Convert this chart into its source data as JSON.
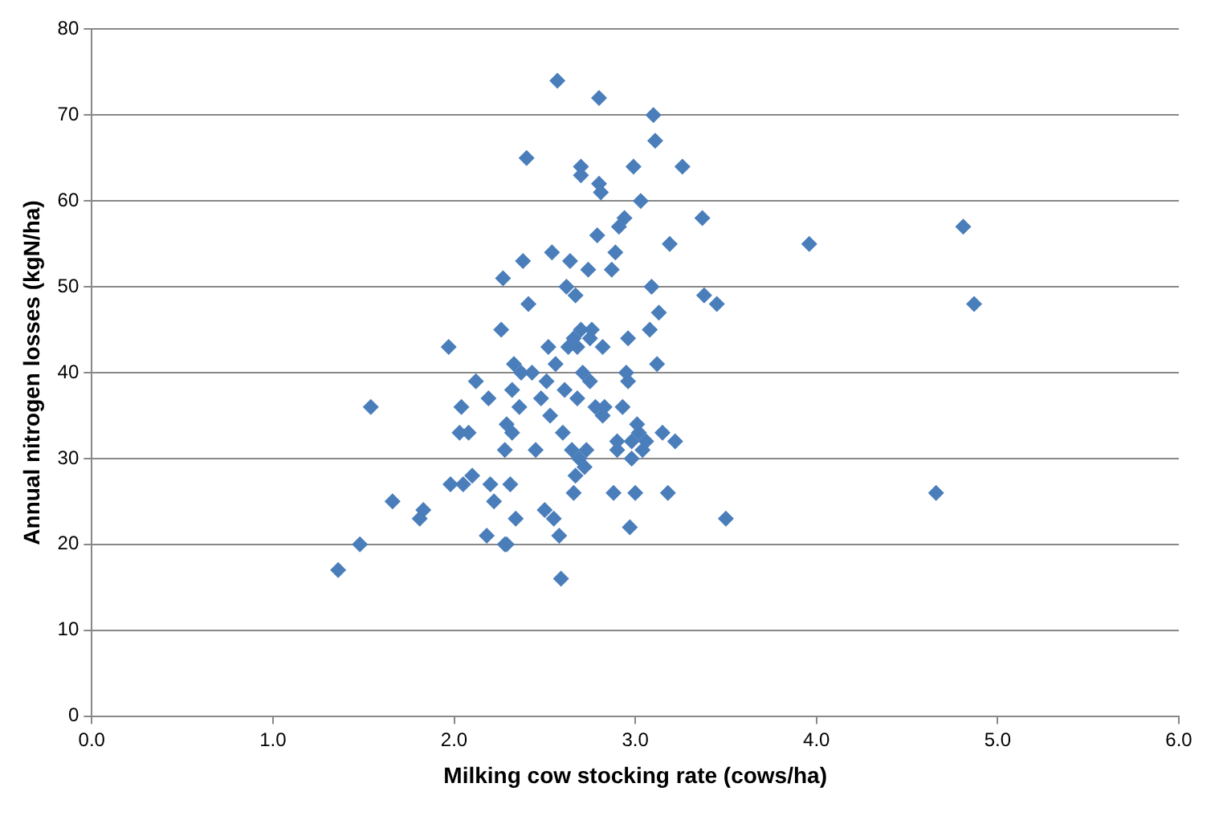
{
  "chart_data": {
    "type": "scatter",
    "xlabel": "Milking cow stocking rate (cows/ha)",
    "ylabel": "Annual nitrogen losses (kgN/ha)",
    "xlim": [
      0,
      6
    ],
    "ylim": [
      0,
      80
    ],
    "xticks": [
      {
        "value": 0,
        "label": "0.0"
      },
      {
        "value": 1,
        "label": "1.0"
      },
      {
        "value": 2,
        "label": "2.0"
      },
      {
        "value": 3,
        "label": "3.0"
      },
      {
        "value": 4,
        "label": "4.0"
      },
      {
        "value": 5,
        "label": "5.0"
      },
      {
        "value": 6,
        "label": "6.0"
      }
    ],
    "yticks": [
      0,
      10,
      20,
      30,
      40,
      50,
      60,
      70,
      80
    ],
    "grid": "y",
    "legend": false,
    "marker": "diamond",
    "series": [
      {
        "color": "#4a7ebb",
        "x": [
          1.36,
          1.48,
          1.54,
          1.66,
          1.81,
          1.83,
          1.97,
          1.98,
          2.03,
          2.04,
          2.05,
          2.08,
          2.1,
          2.12,
          2.18,
          2.19,
          2.2,
          2.22,
          2.26,
          2.27,
          2.28,
          2.29,
          2.28,
          2.29,
          2.31,
          2.32,
          2.32,
          2.33,
          2.34,
          2.36,
          2.37,
          2.38,
          2.4,
          2.41,
          2.43,
          2.45,
          2.48,
          2.5,
          2.51,
          2.52,
          2.53,
          2.54,
          2.55,
          2.56,
          2.57,
          2.58,
          2.59,
          2.6,
          2.61,
          2.62,
          2.63,
          2.64,
          2.65,
          2.66,
          2.66,
          2.67,
          2.67,
          2.68,
          2.68,
          2.69,
          2.7,
          2.7,
          2.7,
          2.71,
          2.72,
          2.73,
          2.74,
          2.75,
          2.75,
          2.76,
          2.78,
          2.79,
          2.8,
          2.8,
          2.81,
          2.82,
          2.82,
          2.83,
          2.87,
          2.88,
          2.89,
          2.9,
          2.9,
          2.91,
          2.93,
          2.94,
          2.95,
          2.96,
          2.97,
          2.98,
          2.99,
          3.0,
          3.01,
          3.02,
          3.03,
          3.04,
          3.06,
          3.08,
          3.09,
          3.1,
          3.11,
          3.12,
          3.13,
          3.15,
          3.18,
          3.19,
          3.22,
          3.26,
          3.37,
          3.38,
          3.45,
          3.5,
          3.96,
          4.66,
          4.81,
          4.87,
          2.96,
          2.98
        ],
        "values": [
          17,
          20,
          36,
          25,
          23,
          24,
          43,
          27,
          33,
          36,
          27,
          33,
          28,
          39,
          21,
          37,
          27,
          25,
          45,
          51,
          20,
          20,
          31,
          34,
          27,
          33,
          38,
          41,
          23,
          36,
          40,
          53,
          65,
          48,
          40,
          31,
          37,
          24,
          39,
          43,
          35,
          54,
          23,
          41,
          74,
          21,
          16,
          33,
          38,
          50,
          43,
          53,
          31,
          26,
          44,
          28,
          49,
          37,
          43,
          30,
          64,
          63,
          45,
          40,
          29,
          31,
          52,
          39,
          44,
          45,
          36,
          56,
          72,
          62,
          61,
          35,
          43,
          36,
          52,
          26,
          54,
          31,
          32,
          57,
          36,
          58,
          40,
          39,
          22,
          32,
          64,
          26,
          34,
          33,
          60,
          31,
          32,
          45,
          50,
          70,
          67,
          41,
          47,
          33,
          26,
          55,
          32,
          64,
          58,
          49,
          48,
          23,
          55,
          26,
          57,
          48,
          44,
          30
        ]
      }
    ]
  }
}
